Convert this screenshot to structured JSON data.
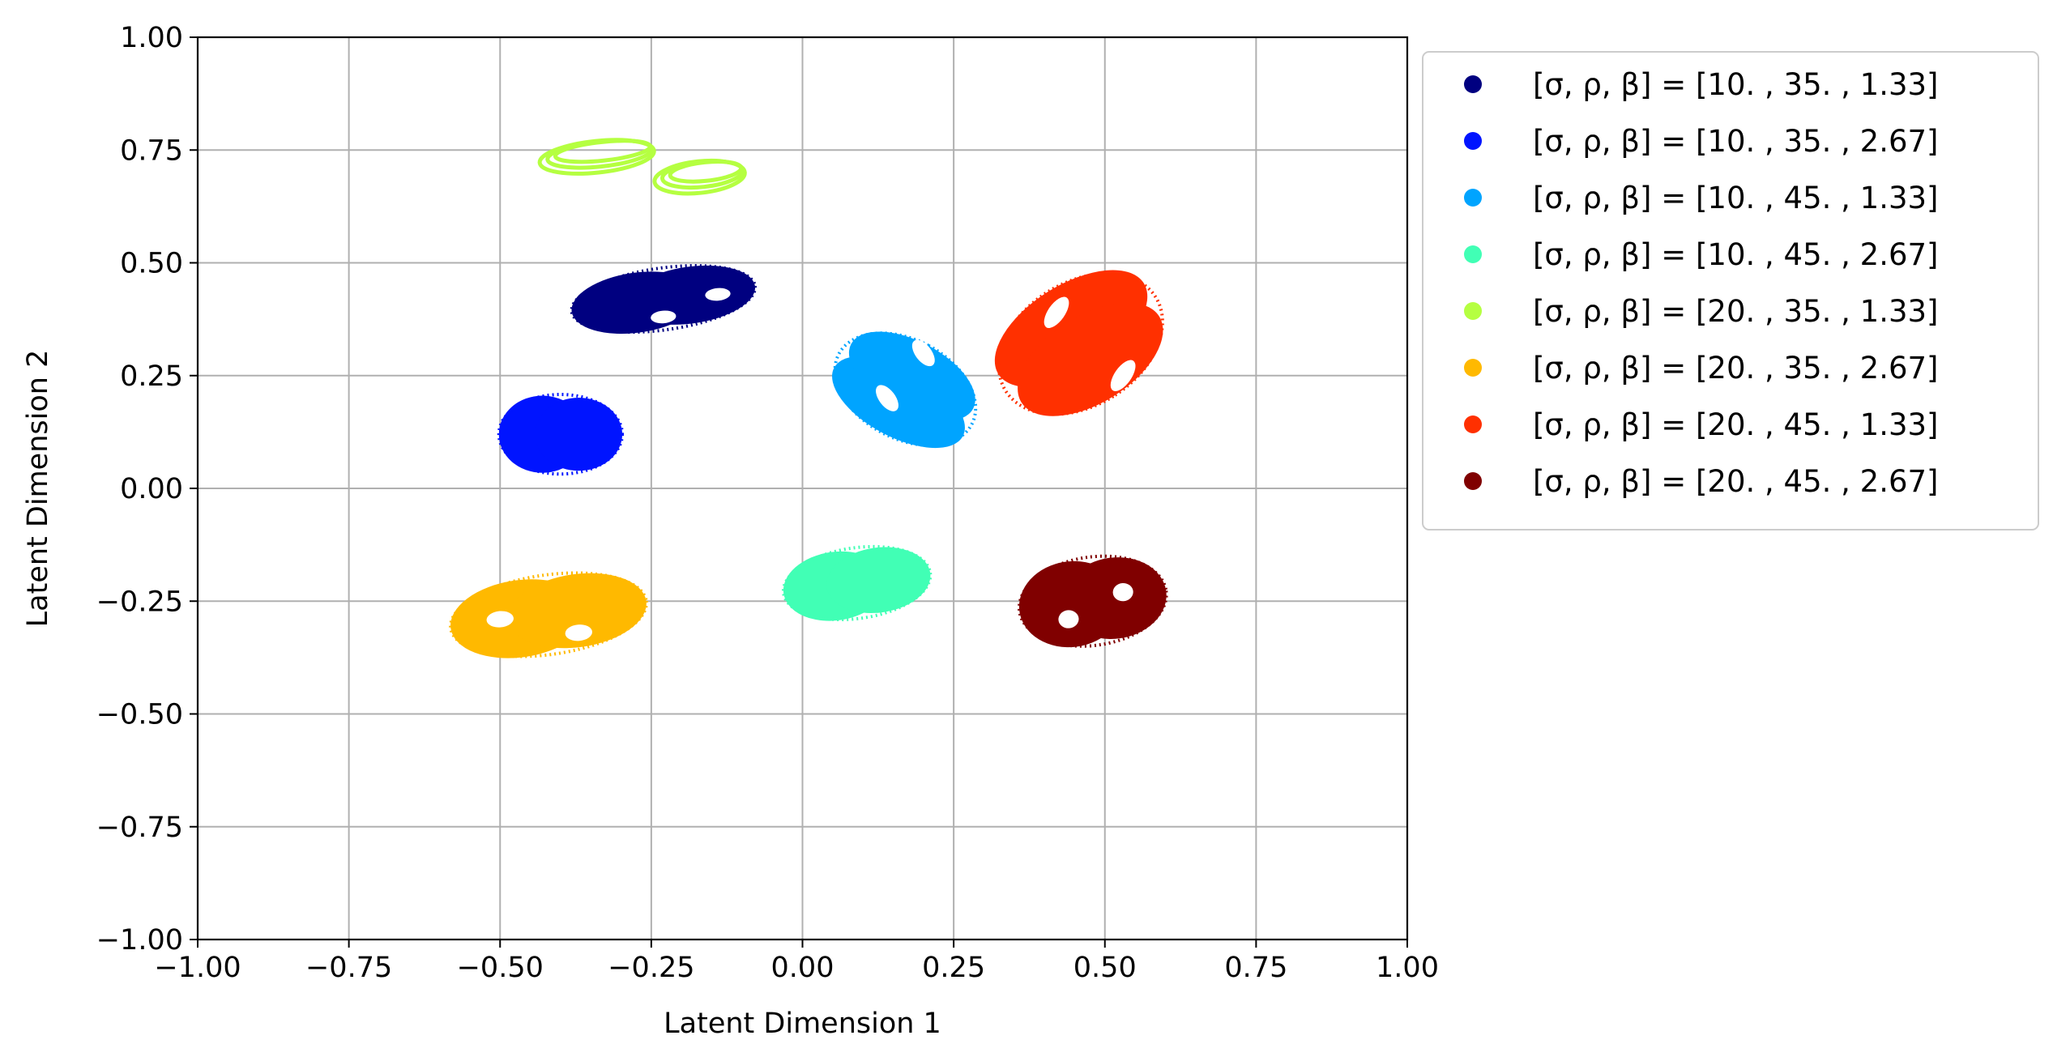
{
  "chart_data": {
    "type": "scatter",
    "title": "",
    "xlabel": "Latent Dimension 1",
    "ylabel": "Latent Dimension 2",
    "xlim": [
      -1.0,
      1.0
    ],
    "ylim": [
      -1.0,
      1.0
    ],
    "xticks": [
      "−1.00",
      "−0.75",
      "−0.50",
      "−0.25",
      "0.00",
      "0.25",
      "0.50",
      "0.75",
      "1.00"
    ],
    "yticks": [
      "1.00",
      "0.75",
      "0.50",
      "0.25",
      "0.00",
      "−0.25",
      "−0.50",
      "−0.75",
      "−1.00"
    ],
    "xtick_values": [
      -1.0,
      -0.75,
      -0.5,
      -0.25,
      0.0,
      0.25,
      0.5,
      0.75,
      1.0
    ],
    "ytick_values": [
      1.0,
      0.75,
      0.5,
      0.25,
      0.0,
      -0.25,
      -0.5,
      -0.75,
      -1.0
    ],
    "grid": true,
    "legend_position": "outside-right-top",
    "series": [
      {
        "name": "[σ, ρ, β] = [10.  , 35.  ,  1.33]",
        "color": "#000080",
        "center": [
          -0.23,
          0.42
        ],
        "extent": [
          0.15,
          0.07
        ],
        "holes": [
          [
            -0.23,
            0.38
          ],
          [
            -0.14,
            0.43
          ]
        ]
      },
      {
        "name": "[σ, ρ, β] = [10.  , 35.  ,  2.67]",
        "color": "#0014ff",
        "center": [
          -0.4,
          0.12
        ],
        "extent": [
          0.1,
          0.09
        ],
        "holes": []
      },
      {
        "name": "[σ, ρ, β] = [10.  , 45.  ,  1.33]",
        "color": "#00a4ff",
        "center": [
          0.17,
          0.22
        ],
        "extent": [
          0.08,
          0.17
        ],
        "holes": [
          [
            0.14,
            0.2
          ],
          [
            0.2,
            0.3
          ]
        ]
      },
      {
        "name": "[σ, ρ, β] = [10.  , 45.  ,  2.67]",
        "color": "#41ffb5",
        "center": [
          0.09,
          -0.21
        ],
        "extent": [
          0.12,
          0.08
        ],
        "holes": []
      },
      {
        "name": "[σ, ρ, β] = [20.  , 35.  ,  1.33]",
        "color": "#b5ff41",
        "center": [
          -0.28,
          0.74
        ],
        "extent": [
          0.2,
          0.06
        ],
        "holes": []
      },
      {
        "name": "[σ, ρ, β] = [20.  , 35.  ,  2.67]",
        "color": "#ffb900",
        "center": [
          -0.42,
          -0.28
        ],
        "extent": [
          0.16,
          0.09
        ],
        "holes": [
          [
            -0.5,
            -0.29
          ],
          [
            -0.37,
            -0.32
          ]
        ]
      },
      {
        "name": "[σ, ρ, β] = [20.  , 45.  ,  1.33]",
        "color": "#ff3000",
        "center": [
          0.46,
          0.32
        ],
        "extent": [
          0.1,
          0.2
        ],
        "holes": [
          [
            0.42,
            0.39
          ],
          [
            0.53,
            0.25
          ]
        ]
      },
      {
        "name": "[σ, ρ, β] = [20.  , 45.  ,  2.67]",
        "color": "#800000",
        "center": [
          0.48,
          -0.25
        ],
        "extent": [
          0.12,
          0.1
        ],
        "holes": [
          [
            0.44,
            -0.29
          ],
          [
            0.53,
            -0.23
          ]
        ]
      }
    ]
  }
}
